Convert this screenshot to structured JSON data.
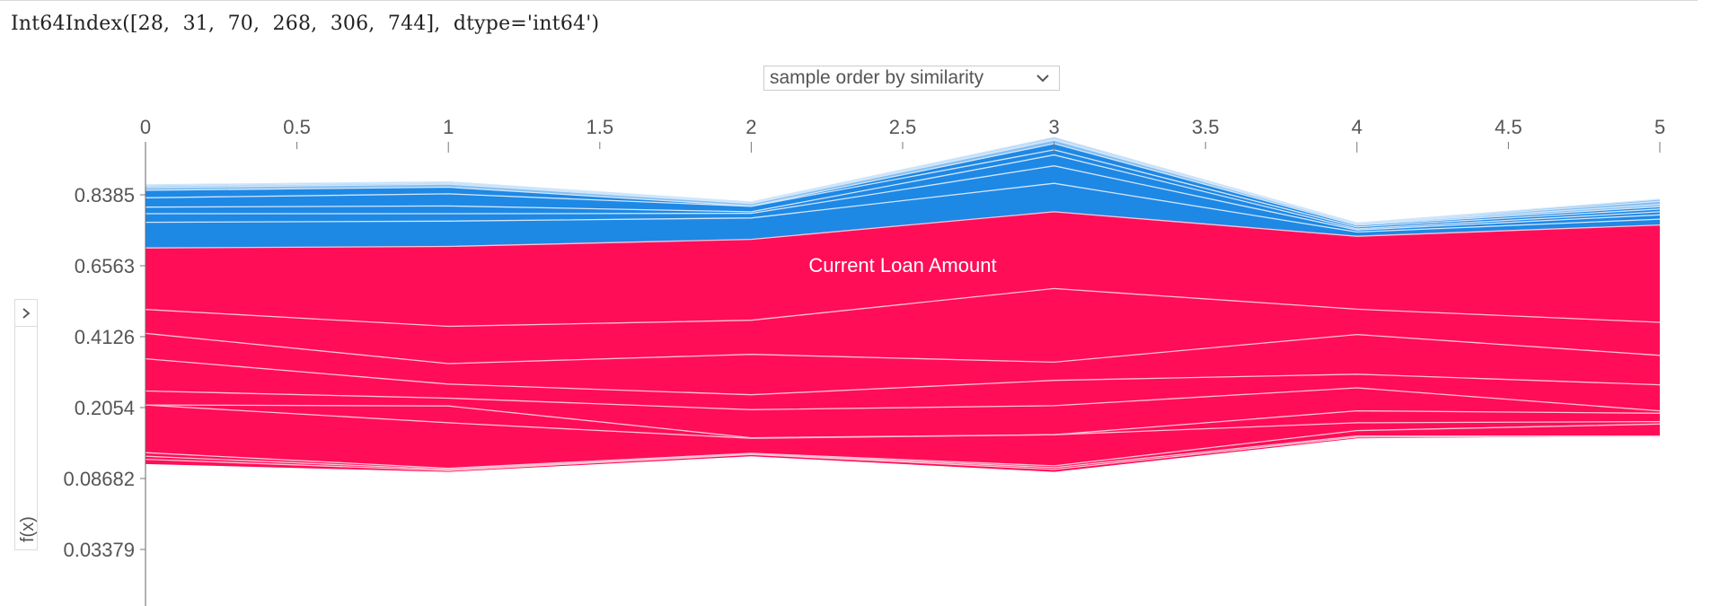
{
  "output": {
    "text": "Int64Index([28,  31,  70,  268,  306,  744],  dtype='int64')"
  },
  "controls": {
    "ordering_select_value": "sample order by similarity",
    "ylabel_toggle_icon": "chevron-right-icon",
    "dropdown_icon": "chevron-down-icon"
  },
  "chart_data": {
    "type": "area",
    "title": "",
    "xlabel": "",
    "ylabel": "f(x)",
    "x": [
      0,
      1,
      2,
      3,
      4,
      5
    ],
    "xlim": [
      0,
      5
    ],
    "x_ticks": [
      "0",
      "0.5",
      "1",
      "1.5",
      "2",
      "2.5",
      "3",
      "3.5",
      "4",
      "4.5",
      "5"
    ],
    "y_ticks": [
      "0.8385",
      "0.6563",
      "0.4126",
      "0.2054",
      "0.08682",
      "0.03379"
    ],
    "grid": false,
    "legend": "none",
    "colors": {
      "positive": "#ff0d57",
      "negative": "#1e88e5",
      "separator_positive": "#ffc3d5",
      "separator_negative": "#d1e6fa"
    },
    "annotations": [
      {
        "text": "Current Loan Amount",
        "x": 2.5
      }
    ],
    "bands": {
      "positive_boundaries": [
        [
          0.111,
          0.098,
          0.124,
          0.098,
          0.154,
          0.158
        ],
        [
          0.119,
          0.1,
          0.127,
          0.102,
          0.156,
          0.158
        ],
        [
          0.124,
          0.102,
          0.128,
          0.105,
          0.158,
          0.158
        ],
        [
          0.13,
          0.104,
          0.129,
          0.108,
          0.167,
          0.178
        ],
        [
          0.213,
          0.21,
          0.155,
          0.16,
          0.18,
          0.182
        ],
        [
          0.213,
          0.18,
          0.154,
          0.16,
          0.2,
          0.196
        ],
        [
          0.254,
          0.233,
          0.202,
          0.211,
          0.263,
          0.2
        ],
        [
          0.348,
          0.274,
          0.243,
          0.285,
          0.303,
          0.272
        ],
        [
          0.424,
          0.334,
          0.361,
          0.338,
          0.42,
          0.358
        ],
        [
          0.506,
          0.448,
          0.469,
          0.578,
          0.507,
          0.462
        ],
        [
          0.702,
          0.706,
          0.724,
          0.795,
          0.732,
          0.761
        ]
      ],
      "negative_boundaries": [
        [
          0.702,
          0.706,
          0.724,
          0.795,
          0.732,
          0.761
        ],
        [
          0.768,
          0.771,
          0.779,
          0.868,
          0.743,
          0.776
        ],
        [
          0.79,
          0.79,
          0.791,
          0.913,
          0.748,
          0.787
        ],
        [
          0.807,
          0.81,
          0.795,
          0.941,
          0.751,
          0.795
        ],
        [
          0.831,
          0.841,
          0.809,
          0.954,
          0.756,
          0.802
        ],
        [
          0.85,
          0.858,
          0.81,
          0.97,
          0.76,
          0.808
        ],
        [
          0.857,
          0.866,
          0.816,
          0.979,
          0.763,
          0.814
        ],
        [
          0.861,
          0.869,
          0.818,
          0.982,
          0.764,
          0.822
        ],
        [
          0.864,
          0.872,
          0.82,
          0.986,
          0.766,
          0.827
        ]
      ]
    }
  }
}
